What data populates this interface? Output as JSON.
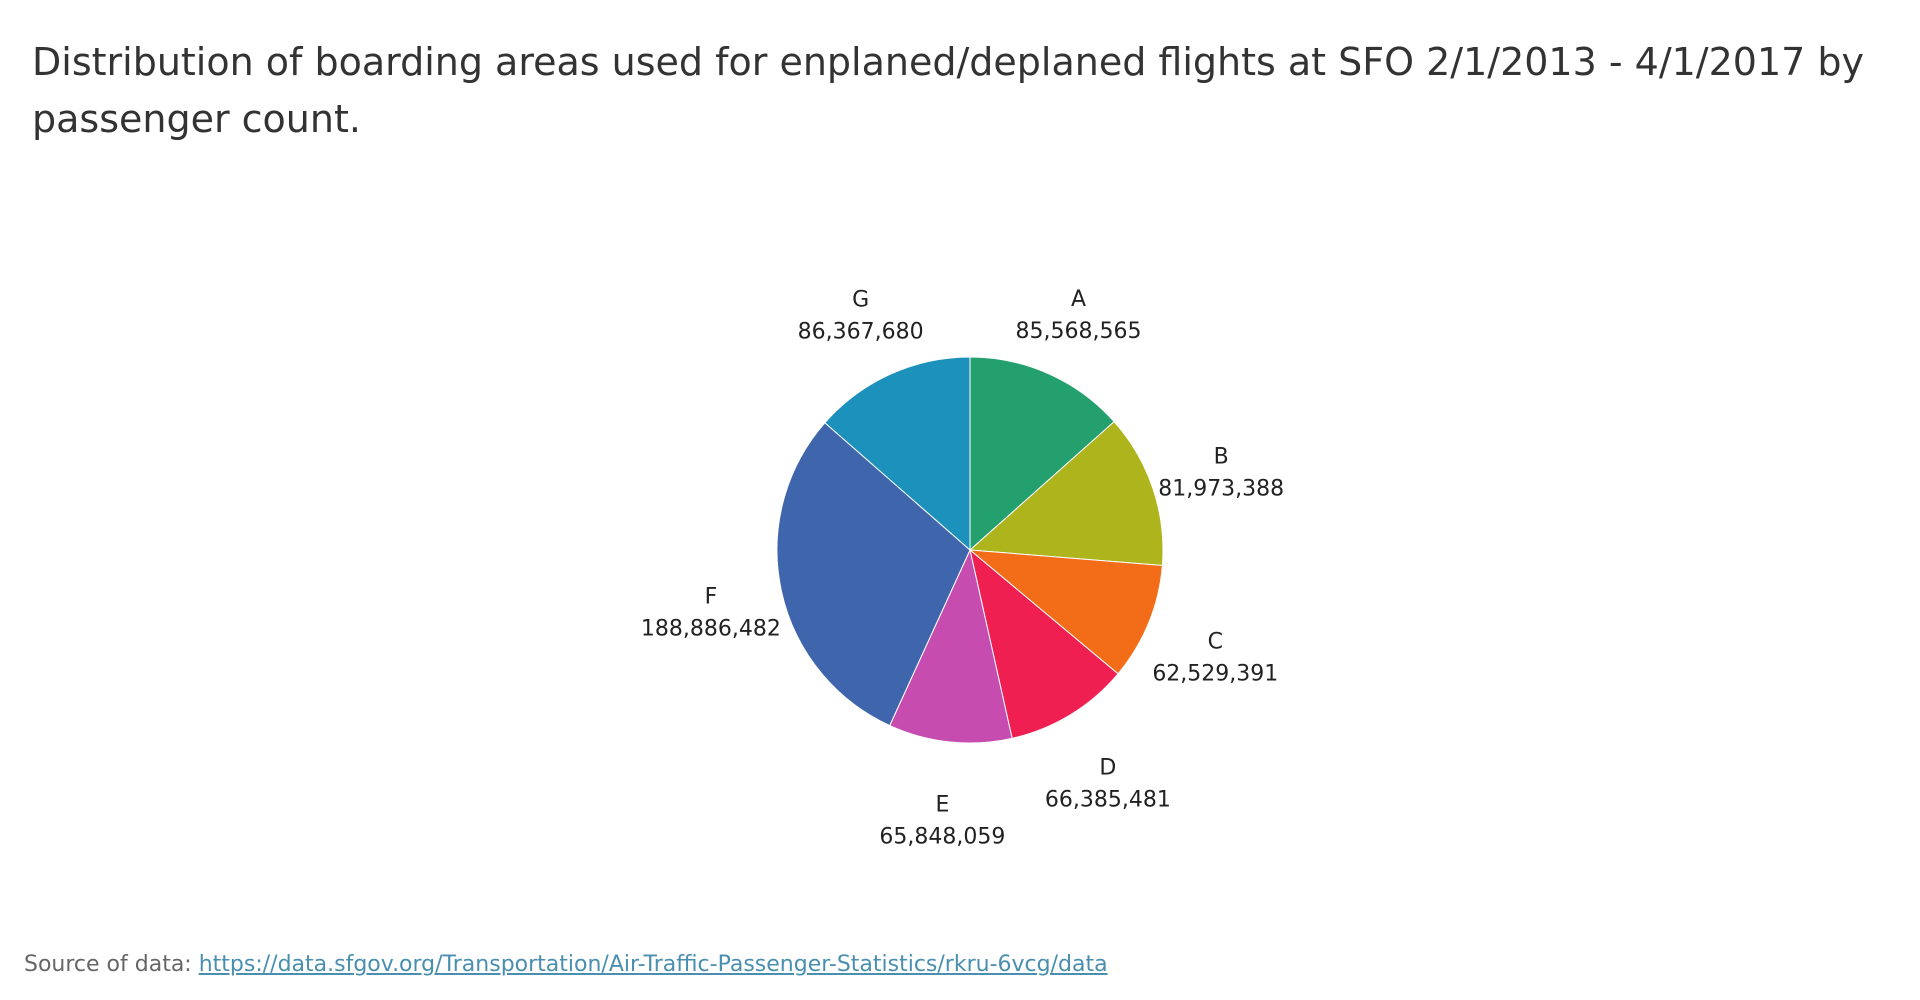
{
  "chart_data": {
    "type": "pie",
    "title": "Distribution of boarding areas used for enplaned/deplaned flights at SFO 2/1/2013 - 4/1/2017 by passenger count.",
    "categories": [
      "A",
      "B",
      "C",
      "D",
      "E",
      "F",
      "G"
    ],
    "values": [
      85568565,
      81973388,
      62529391,
      66385481,
      65848059,
      188886482,
      86367680
    ],
    "value_labels": [
      "85,568,565",
      "81,973,388",
      "62,529,391",
      "66,385,481",
      "65,848,059",
      "188,886,482",
      "86,367,680"
    ],
    "colors": [
      "#23a06e",
      "#adb41c",
      "#f36c17",
      "#ef2051",
      "#c64cb0",
      "#3f66ad",
      "#1c91bc"
    ],
    "start_angle_deg": 0,
    "direction": "clockwise"
  },
  "source": {
    "prefix": "Source of data: ",
    "link_text": "https://data.sfgov.org/Transportation/Air-Traffic-Passenger-Statistics/rkru-6vcg/data"
  }
}
